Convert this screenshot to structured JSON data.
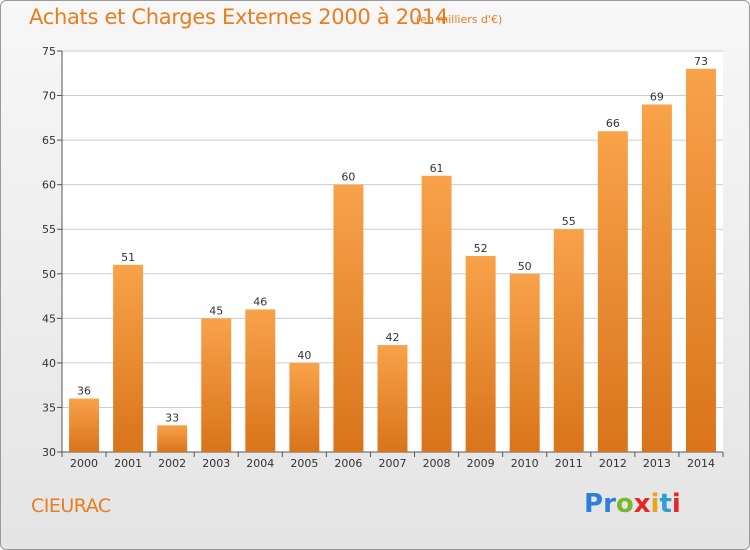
{
  "header": {
    "title": "Achats et Charges Externes 2000 à 2014",
    "subtitle": "(en milliers d'€)"
  },
  "footer": {
    "commune": "CIEURAC",
    "logo": {
      "letters": [
        "P",
        "r",
        "o",
        "x",
        "i",
        "t",
        "i"
      ],
      "colors": [
        "#2f7fd8",
        "#2f7fd8",
        "#79b82a",
        "#e8262a",
        "#f2a21a",
        "#2f9fd8",
        "#e8262a"
      ]
    }
  },
  "chart_data": {
    "type": "bar",
    "title": "Achats et Charges Externes 2000 à 2014",
    "subtitle": "(en milliers d'€)",
    "xlabel": "",
    "ylabel": "",
    "categories": [
      "2000",
      "2001",
      "2002",
      "2003",
      "2004",
      "2005",
      "2006",
      "2007",
      "2008",
      "2009",
      "2010",
      "2011",
      "2012",
      "2013",
      "2014"
    ],
    "values": [
      36,
      51,
      33,
      45,
      46,
      40,
      60,
      42,
      61,
      52,
      50,
      55,
      66,
      69,
      73
    ],
    "ylim": [
      30,
      75
    ],
    "yticks": [
      30,
      35,
      40,
      45,
      50,
      55,
      60,
      65,
      70,
      75
    ],
    "grid": true,
    "bar_color_top": "#f8a24a",
    "bar_color_bottom": "#d9741b",
    "grid_color": "#cccccc"
  }
}
